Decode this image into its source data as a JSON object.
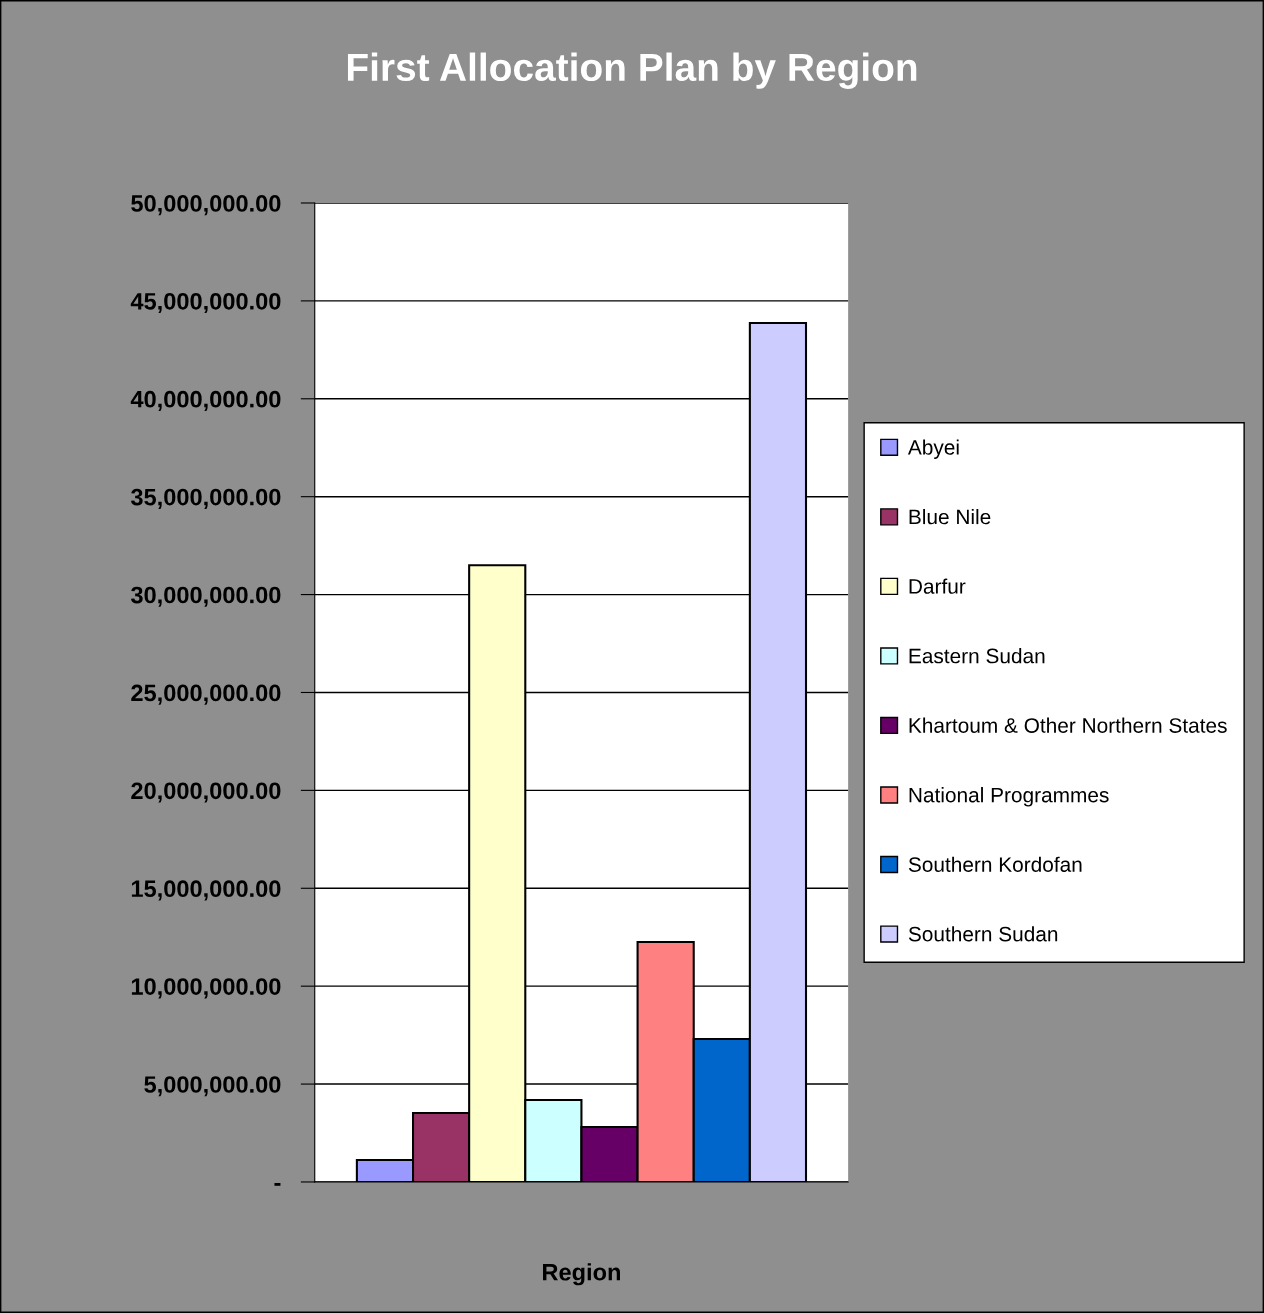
{
  "chart_data": {
    "type": "bar",
    "title": "First Allocation Plan by Region",
    "xlabel": "Region",
    "categories": [
      null
    ],
    "series": [
      {
        "name": "Abyei",
        "color": "#9999ff",
        "values": [
          1120000
        ]
      },
      {
        "name": "Blue Nile",
        "color": "#993366",
        "values": [
          3520000
        ]
      },
      {
        "name": "Darfur",
        "color": "#ffffcc",
        "values": [
          31500000
        ]
      },
      {
        "name": "Eastern Sudan",
        "color": "#ccffff",
        "values": [
          4190000
        ]
      },
      {
        "name": "Khartoum & Other Northern States",
        "color": "#660066",
        "values": [
          2810000
        ]
      },
      {
        "name": "National Programmes",
        "color": "#ff8080",
        "values": [
          12260000
        ]
      },
      {
        "name": "Southern Kordofan",
        "color": "#0066cc",
        "values": [
          7300000
        ]
      },
      {
        "name": "Southern Sudan",
        "color": "#ccccff",
        "values": [
          43870000
        ]
      }
    ],
    "ylim": [
      0,
      50000000
    ],
    "yticks": [
      {
        "value": 0,
        "label": "-"
      },
      {
        "value": 5000000,
        "label": "5,000,000.00"
      },
      {
        "value": 10000000,
        "label": "10,000,000.00"
      },
      {
        "value": 15000000,
        "label": "15,000,000.00"
      },
      {
        "value": 20000000,
        "label": "20,000,000.00"
      },
      {
        "value": 25000000,
        "label": "25,000,000.00"
      },
      {
        "value": 30000000,
        "label": "30,000,000.00"
      },
      {
        "value": 35000000,
        "label": "35,000,000.00"
      },
      {
        "value": 40000000,
        "label": "40,000,000.00"
      },
      {
        "value": 45000000,
        "label": "45,000,000.00"
      },
      {
        "value": 50000000,
        "label": "50,000,000.00"
      }
    ],
    "grid": "y",
    "legend": "right"
  }
}
